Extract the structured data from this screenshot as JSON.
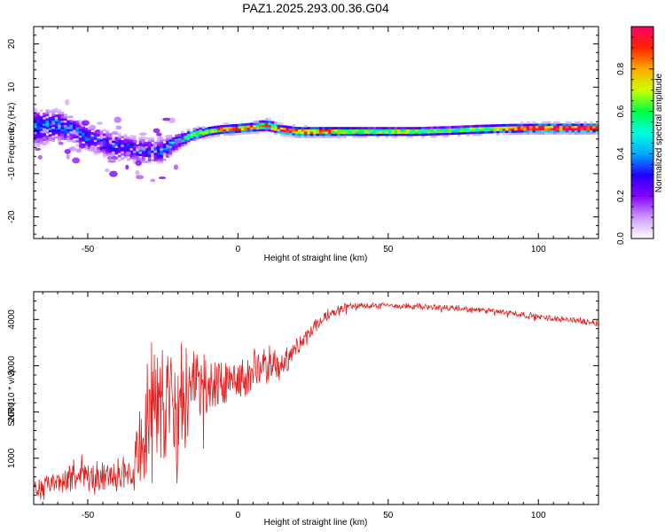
{
  "chart_data": [
    {
      "type": "heatmap",
      "title": "PAZ1.2025.293.00.36.G04",
      "xlabel": "Height of straight line (km)",
      "ylabel": "Frequency (Hz)",
      "xlim": [
        -68,
        120
      ],
      "ylim": [
        -25,
        24
      ],
      "xticks": [
        -50,
        0,
        50,
        100
      ],
      "yticks": [
        -20,
        -10,
        0,
        10,
        20
      ],
      "colorbar": {
        "label": "Normalized spectral amplitude",
        "range": [
          0,
          1
        ],
        "ticks": [
          "0.0",
          "0.2",
          "0.4",
          "0.6",
          "0.8"
        ],
        "tick_values": [
          0,
          0.2,
          0.4,
          0.6,
          0.8
        ],
        "colors": [
          "#ffffff",
          "#cc99ff",
          "#8800ff",
          "#2200ff",
          "#00aaff",
          "#00ffdd",
          "#00ff44",
          "#ccff00",
          "#ffaa00",
          "#ff2200",
          "#ff0066"
        ]
      },
      "ridge": {
        "x": [
          -66,
          -60,
          -55,
          -50,
          -45,
          -40,
          -35,
          -30,
          -25,
          -22,
          -18,
          -14,
          -10,
          -5,
          0,
          5,
          10,
          14,
          20,
          30,
          40,
          50,
          60,
          70,
          80,
          90,
          100,
          110,
          120
        ],
        "freq": [
          0.5,
          1,
          0,
          -2,
          -3,
          -4,
          -4.5,
          -5,
          -5,
          -3.5,
          -2,
          -1,
          -0.5,
          0,
          0.2,
          0.5,
          1,
          0,
          -0.5,
          -0.5,
          -0.5,
          -0.5,
          -0.5,
          -0.3,
          0,
          0.2,
          0.3,
          0.3,
          0.3
        ],
        "amplitude": [
          0.35,
          0.35,
          0.35,
          0.3,
          0.3,
          0.3,
          0.3,
          0.3,
          0.3,
          0.4,
          0.5,
          0.6,
          0.7,
          0.75,
          0.85,
          0.75,
          0.8,
          0.85,
          0.85,
          0.8,
          0.6,
          0.6,
          0.6,
          0.55,
          0.6,
          0.8,
          0.95,
          0.95,
          0.95
        ],
        "spread": [
          4,
          3.5,
          3,
          3,
          3,
          3,
          3,
          3,
          3,
          2,
          1.5,
          1.2,
          1,
          1,
          1,
          1,
          1.2,
          1,
          1,
          1,
          1,
          1,
          1,
          1,
          1,
          1,
          1,
          1,
          1
        ]
      }
    },
    {
      "type": "line",
      "xlabel": "Height of straight line (km)",
      "ylabel": "SNR (10 * v/v)",
      "xlim": [
        -68,
        120
      ],
      "ylim": [
        0,
        4600
      ],
      "xticks": [
        -50,
        0,
        50,
        100
      ],
      "yticks": [
        1000,
        2000,
        3000,
        4000
      ],
      "series": [
        {
          "name": "SNR",
          "color": "#e02020",
          "x": [
            -68,
            -60,
            -50,
            -40,
            -35,
            -32,
            -30,
            -25,
            -20,
            -15,
            -10,
            -5,
            0,
            5,
            10,
            15,
            20,
            25,
            30,
            35,
            40,
            50,
            60,
            70,
            80,
            90,
            100,
            110,
            120
          ],
          "y": [
            350,
            450,
            600,
            650,
            800,
            1500,
            2000,
            2200,
            2000,
            2400,
            2500,
            2600,
            2700,
            2900,
            2900,
            3100,
            3400,
            3800,
            4100,
            4250,
            4300,
            4300,
            4280,
            4250,
            4200,
            4150,
            4050,
            4000,
            3920
          ],
          "noise_amplitude": [
            300,
            320,
            380,
            400,
            600,
            1400,
            1800,
            1900,
            1800,
            1000,
            850,
            700,
            600,
            550,
            550,
            400,
            300,
            200,
            150,
            120,
            90,
            80,
            80,
            80,
            80,
            80,
            80,
            80,
            80
          ]
        }
      ]
    }
  ]
}
